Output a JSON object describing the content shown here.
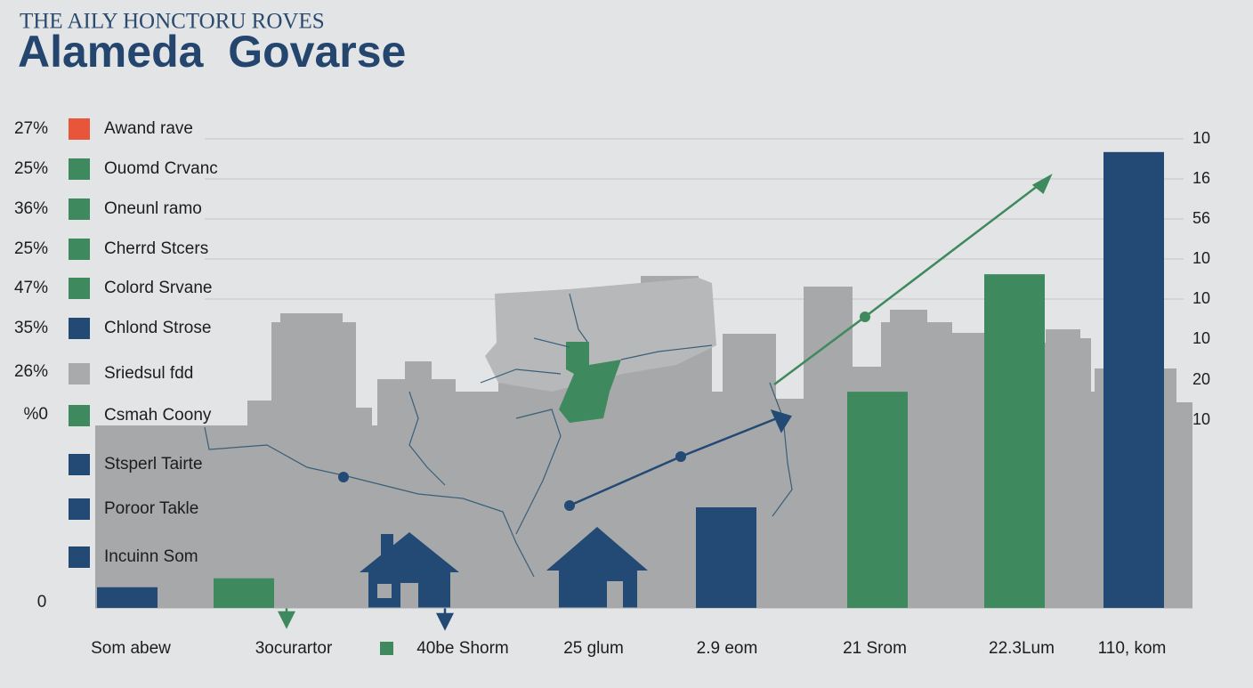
{
  "chart_data": {
    "type": "bar",
    "subtitle": "THE AILY HONCTORU ROVES",
    "title": "Alameda  Govarse",
    "left_labels": [
      "27%",
      "25%",
      "36%",
      "25%",
      "47%",
      "35%",
      "26%",
      "%0"
    ],
    "legend": [
      {
        "name": "Awand rave",
        "color": "#e8553a"
      },
      {
        "name": "Ouomd Crvanc",
        "color": "#3e8a5e"
      },
      {
        "name": "Oneunl ramo",
        "color": "#3e8a5e"
      },
      {
        "name": "Cherrd Stcers",
        "color": "#3e8a5e"
      },
      {
        "name": "Colord Srvane",
        "color": "#3e8a5e"
      },
      {
        "name": "Chlond Strose",
        "color": "#234a75"
      },
      {
        "name": "Sriedsul fdd",
        "color": "#a9aaab"
      },
      {
        "name": "Csmah Coony",
        "color": "#3e8a5e"
      },
      {
        "name": "Stsperl Tairte",
        "color": "#234a75"
      },
      {
        "name": "Poroor Takle",
        "color": "#234a75"
      },
      {
        "name": "Incuinn Som",
        "color": "#234a75"
      }
    ],
    "right_labels": [
      10,
      16,
      56,
      10,
      10,
      10,
      20,
      10
    ],
    "categories": [
      "Som abew",
      "3ocurartor",
      "40be Shorm",
      "25 glum",
      "2.9 eom",
      "21 Srom",
      "22.3Lum",
      "110, kom"
    ],
    "values": [
      4.4,
      6.3,
      null,
      null,
      21.4,
      46,
      71,
      97
    ],
    "colors": [
      "#234a75",
      "#3e8a5e",
      "#3e8a5e",
      "#234a75",
      "#234a75",
      "#3e8a5e",
      "#3e8a5e",
      "#234a75"
    ],
    "ylim": [
      0,
      100
    ],
    "yticks": [
      0
    ]
  }
}
